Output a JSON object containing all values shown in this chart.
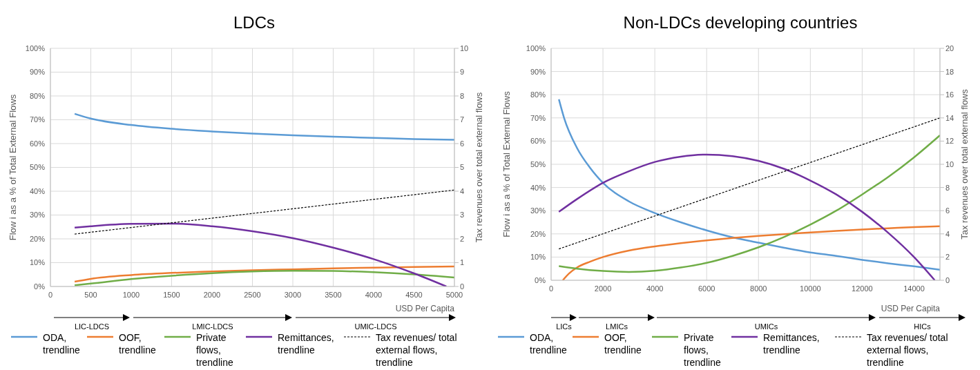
{
  "chart_data": [
    {
      "type": "line",
      "title": "LDCs",
      "xlabel": "USD Per Capita",
      "ylabel": "Flow i as a % of Total External Flows",
      "y2label": "Tax revenues over total external flows",
      "xlim": [
        0,
        5000
      ],
      "xticks": [
        0,
        500,
        1000,
        1500,
        2000,
        2500,
        3000,
        3500,
        4000,
        4500,
        5000
      ],
      "ylim": [
        0,
        100
      ],
      "yticks": [
        {
          "value": 0,
          "label": "0%"
        },
        {
          "value": 10,
          "label": "10%"
        },
        {
          "value": 20,
          "label": "20%"
        },
        {
          "value": 30,
          "label": "30%"
        },
        {
          "value": 40,
          "label": "40%"
        },
        {
          "value": 50,
          "label": "50%"
        },
        {
          "value": 60,
          "label": "60%"
        },
        {
          "value": 70,
          "label": "70%"
        },
        {
          "value": 80,
          "label": "80%"
        },
        {
          "value": 90,
          "label": "90%"
        },
        {
          "value": 100,
          "label": "100%"
        }
      ],
      "y2lim": [
        0,
        10
      ],
      "y2ticks": [
        0,
        1,
        2,
        3,
        4,
        5,
        6,
        7,
        8,
        9,
        10
      ],
      "grid": true,
      "legend": "bottom",
      "annotations": [
        "LIC-LDCS",
        "LMIC-LDCS",
        "UMIC-LDCS"
      ],
      "series": [
        {
          "name": "ODA, trendline",
          "color": "#5b9bd5",
          "x": [
            300,
            500,
            1000,
            1500,
            2000,
            2500,
            3000,
            3500,
            4000,
            4500,
            5000
          ],
          "values": [
            72.5,
            70.5,
            67.8,
            66.2,
            65.1,
            64.2,
            63.5,
            62.9,
            62.4,
            61.9,
            61.6
          ]
        },
        {
          "name": "OOF, trendline",
          "color": "#ed7d31",
          "x": [
            300,
            500,
            1000,
            1500,
            2000,
            2500,
            3000,
            3500,
            4000,
            4500,
            5000
          ],
          "values": [
            2,
            3.2,
            4.8,
            5.7,
            6.3,
            6.8,
            7.2,
            7.6,
            7.9,
            8.2,
            8.4
          ]
        },
        {
          "name": "Private flows, trendline",
          "color": "#70ad47",
          "x": [
            300,
            500,
            1000,
            1500,
            2000,
            2500,
            3000,
            3500,
            4000,
            4500,
            5000
          ],
          "values": [
            0.5,
            1.2,
            3.1,
            4.5,
            5.6,
            6.3,
            6.6,
            6.5,
            6,
            5.1,
            3.8
          ]
        },
        {
          "name": "Remittances, trendline",
          "color": "#7030a0",
          "x": [
            300,
            500,
            1000,
            1500,
            2000,
            2500,
            3000,
            3500,
            4000,
            4500,
            4900
          ],
          "values": [
            24.7,
            25.3,
            26.3,
            26.4,
            25.3,
            23.2,
            20.3,
            16.3,
            11.5,
            5.5,
            0
          ]
        },
        {
          "name": "Tax revenues/ total external flows, trendline",
          "color": "#000000",
          "axis": "y2",
          "line_style": "dotted",
          "x": [
            300,
            5000
          ],
          "values": [
            2.2,
            4.05
          ]
        }
      ]
    },
    {
      "type": "line",
      "title": "Non-LDCs developing countries",
      "xlabel": "USD Per Capita",
      "ylabel": "Flow i as a % of Total External Flows",
      "y2label": "Tax revenues over total external flows",
      "xlim": [
        0,
        15000
      ],
      "xticks": [
        0,
        2000,
        4000,
        6000,
        8000,
        10000,
        12000,
        14000
      ],
      "ylim": [
        0,
        100
      ],
      "yticks": [
        {
          "value": 0,
          "label": "0%"
        },
        {
          "value": 10,
          "label": "10%"
        },
        {
          "value": 20,
          "label": "20%"
        },
        {
          "value": 30,
          "label": "30%"
        },
        {
          "value": 40,
          "label": "40%"
        },
        {
          "value": 50,
          "label": "50%"
        },
        {
          "value": 60,
          "label": "60%"
        },
        {
          "value": 70,
          "label": "70%"
        },
        {
          "value": 80,
          "label": "80%"
        },
        {
          "value": 90,
          "label": "90%"
        },
        {
          "value": 100,
          "label": "100%"
        }
      ],
      "y2lim": [
        0,
        20
      ],
      "y2ticks": [
        0,
        2,
        4,
        6,
        8,
        10,
        12,
        14,
        16,
        18,
        20
      ],
      "grid": true,
      "legend": "bottom",
      "annotations": [
        "LICs",
        "LMICs",
        "UMICs",
        "HICs"
      ],
      "series": [
        {
          "name": "ODA, trendline",
          "color": "#5b9bd5",
          "x": [
            300,
            500,
            1000,
            1500,
            2000,
            3000,
            4000,
            5000,
            6000,
            7000,
            8000,
            9000,
            10000,
            11000,
            12000,
            13000,
            14000,
            15000
          ],
          "values": [
            78,
            70,
            57,
            48.5,
            42,
            34,
            29,
            25,
            21.5,
            18.5,
            16.2,
            14,
            12,
            10.5,
            8.8,
            7.3,
            6,
            4.5
          ]
        },
        {
          "name": "OOF, trendline",
          "color": "#ed7d31",
          "x": [
            450,
            700,
            1000,
            1500,
            2000,
            3000,
            4000,
            5000,
            6000,
            7000,
            8000,
            9000,
            10000,
            11000,
            12000,
            13000,
            14000,
            15000
          ],
          "values": [
            0,
            3,
            5.5,
            8,
            10,
            12.8,
            14.6,
            16,
            17.2,
            18.2,
            19.1,
            19.9,
            20.6,
            21.3,
            21.9,
            22.4,
            22.9,
            23.3
          ]
        },
        {
          "name": "Private flows, trendline",
          "color": "#70ad47",
          "x": [
            300,
            1000,
            2000,
            3000,
            4000,
            5000,
            6000,
            7000,
            8000,
            9000,
            10000,
            11000,
            12000,
            13000,
            14000,
            15000
          ],
          "values": [
            6.1,
            5,
            4,
            3.6,
            4.1,
            5.5,
            7.5,
            10.5,
            14.2,
            18.7,
            24,
            30,
            37,
            44.5,
            53,
            62.5
          ]
        },
        {
          "name": "Remittances, trendline",
          "color": "#7030a0",
          "x": [
            300,
            1000,
            2000,
            3000,
            4000,
            5000,
            6000,
            7000,
            8000,
            9000,
            10000,
            11000,
            12000,
            13000,
            14000,
            14800
          ],
          "values": [
            29.5,
            35,
            42,
            47,
            51,
            53.3,
            54.2,
            53.5,
            51.5,
            48,
            43,
            37,
            29.5,
            20.5,
            10,
            0
          ]
        },
        {
          "name": "Tax revenues/ total external flows, trendline",
          "color": "#000000",
          "axis": "y2",
          "line_style": "dotted",
          "x": [
            300,
            15000
          ],
          "values": [
            2.7,
            14
          ]
        }
      ]
    }
  ]
}
